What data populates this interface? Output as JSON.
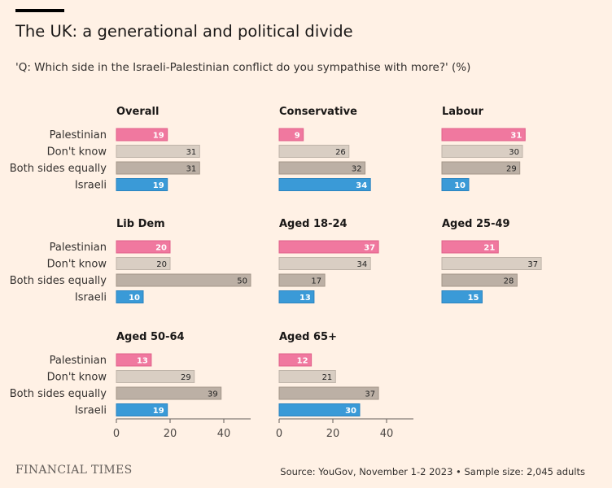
{
  "header": {
    "title": "The UK: a generational and political divide",
    "subtitle": "'Q: Which side in the Israeli-Palestinian conflict do you sympathise with more?' (%)"
  },
  "footer": {
    "brand": "FINANCIAL TIMES",
    "source": "Source: YouGov, November 1-2 2023 • Sample size: 2,045 adults"
  },
  "chart_data": {
    "type": "bar",
    "orientation": "horizontal",
    "layout": "small-multiples",
    "unit": "%",
    "categories": [
      "Palestinian",
      "Don't know",
      "Both sides equally",
      "Israeli"
    ],
    "category_colors": [
      "#f0789f",
      "#d9cec3",
      "#bcb0a5",
      "#3a9ad7"
    ],
    "axis_ticks": [
      0,
      20,
      40
    ],
    "xlim": [
      0,
      50
    ],
    "panels": [
      {
        "title": "Overall",
        "values": [
          19,
          31,
          31,
          19
        ]
      },
      {
        "title": "Conservative",
        "values": [
          9,
          26,
          32,
          34
        ]
      },
      {
        "title": "Labour",
        "values": [
          31,
          30,
          29,
          10
        ]
      },
      {
        "title": "Lib Dem",
        "values": [
          20,
          20,
          50,
          10
        ]
      },
      {
        "title": "Aged 18-24",
        "values": [
          37,
          34,
          17,
          13
        ]
      },
      {
        "title": "Aged 25-49",
        "values": [
          21,
          37,
          28,
          15
        ]
      },
      {
        "title": "Aged 50-64",
        "values": [
          13,
          29,
          39,
          19
        ]
      },
      {
        "title": "Aged 65+",
        "values": [
          12,
          21,
          37,
          30
        ]
      }
    ]
  }
}
